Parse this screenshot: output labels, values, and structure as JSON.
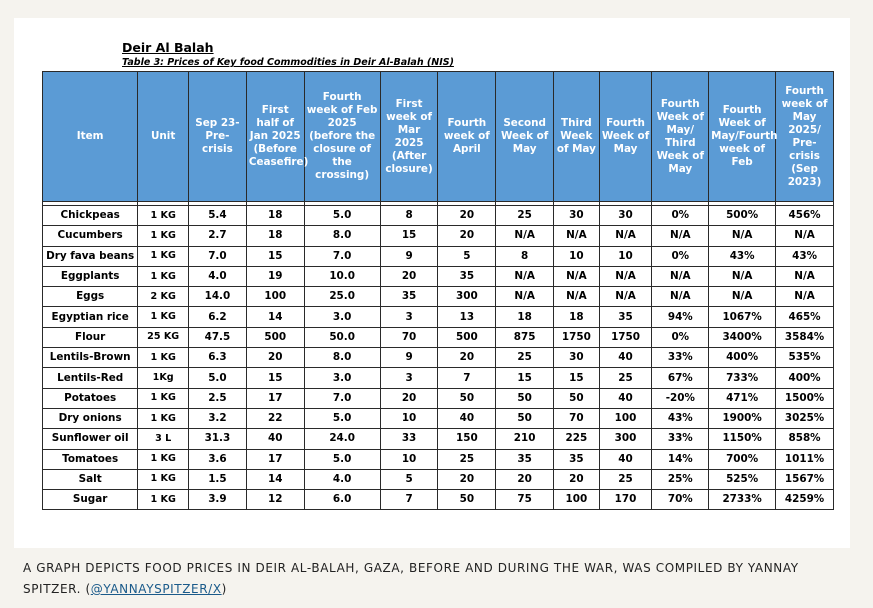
{
  "title": "Deir Al Balah",
  "subtitle": "Table 3: Prices of Key food Commodities in Deir Al-Balah (NIS)",
  "headers": [
    "Item",
    "Unit",
    "Sep 23-Pre-crisis",
    "First half of Jan 2025 (Before Ceasefire)",
    "Fourth week of Feb 2025 (before the closure of the crossing)",
    "First week of Mar 2025 (After closure)",
    "Fourth week of April",
    "Second Week of May",
    "Third Week of May",
    "Fourth Week of May",
    "Fourth Week of May/ Third Week of May",
    "Fourth Week of May/Fourth week of Feb",
    "Fourth week of May 2025/ Pre-crisis (Sep 2023)"
  ],
  "rows": [
    [
      "Chickpeas",
      "1 KG",
      "5.4",
      "18",
      "5.0",
      "8",
      "20",
      "25",
      "30",
      "30",
      "0%",
      "500%",
      "456%"
    ],
    [
      "Cucumbers",
      "1 KG",
      "2.7",
      "18",
      "8.0",
      "15",
      "20",
      "N/A",
      "N/A",
      "N/A",
      "N/A",
      "N/A",
      "N/A"
    ],
    [
      "Dry fava beans",
      "1 KG",
      "7.0",
      "15",
      "7.0",
      "9",
      "5",
      "8",
      "10",
      "10",
      "0%",
      "43%",
      "43%"
    ],
    [
      "Eggplants",
      "1 KG",
      "4.0",
      "19",
      "10.0",
      "20",
      "35",
      "N/A",
      "N/A",
      "N/A",
      "N/A",
      "N/A",
      "N/A"
    ],
    [
      "Eggs",
      "2 KG",
      "14.0",
      "100",
      "25.0",
      "35",
      "300",
      "N/A",
      "N/A",
      "N/A",
      "N/A",
      "N/A",
      "N/A"
    ],
    [
      "Egyptian rice",
      "1 KG",
      "6.2",
      "14",
      "3.0",
      "3",
      "13",
      "18",
      "18",
      "35",
      "94%",
      "1067%",
      "465%"
    ],
    [
      "Flour",
      "25 KG",
      "47.5",
      "500",
      "50.0",
      "70",
      "500",
      "875",
      "1750",
      "1750",
      "0%",
      "3400%",
      "3584%"
    ],
    [
      "Lentils-Brown",
      "1 KG",
      "6.3",
      "20",
      "8.0",
      "9",
      "20",
      "25",
      "30",
      "40",
      "33%",
      "400%",
      "535%"
    ],
    [
      "Lentils-Red",
      "1Kg",
      "5.0",
      "15",
      "3.0",
      "3",
      "7",
      "15",
      "15",
      "25",
      "67%",
      "733%",
      "400%"
    ],
    [
      "Potatoes",
      "1 KG",
      "2.5",
      "17",
      "7.0",
      "20",
      "50",
      "50",
      "50",
      "40",
      "-20%",
      "471%",
      "1500%"
    ],
    [
      "Dry onions",
      "1 KG",
      "3.2",
      "22",
      "5.0",
      "10",
      "40",
      "50",
      "70",
      "100",
      "43%",
      "1900%",
      "3025%"
    ],
    [
      "Sunflower oil",
      "3 L",
      "31.3",
      "40",
      "24.0",
      "33",
      "150",
      "210",
      "225",
      "300",
      "33%",
      "1150%",
      "858%"
    ],
    [
      "Tomatoes",
      "1 KG",
      "3.6",
      "17",
      "5.0",
      "10",
      "25",
      "35",
      "35",
      "40",
      "14%",
      "700%",
      "1011%"
    ],
    [
      "Salt",
      "1 KG",
      "1.5",
      "14",
      "4.0",
      "5",
      "20",
      "20",
      "20",
      "25",
      "25%",
      "525%",
      "1567%"
    ],
    [
      "Sugar",
      "1 KG",
      "3.9",
      "12",
      "6.0",
      "7",
      "50",
      "75",
      "100",
      "170",
      "70%",
      "2733%",
      "4259%"
    ]
  ],
  "caption": {
    "text": "A graph depicts food prices in Deir al-Balah, Gaza, before and during the war, was compiled by Yannay Spitzer. (",
    "link": "@YannaySpitzer/X",
    "close": ")"
  },
  "colors": {
    "header_bg": "#5b9bd5",
    "header_text": "#ffffff",
    "page_bg": "#f5f3ee"
  }
}
